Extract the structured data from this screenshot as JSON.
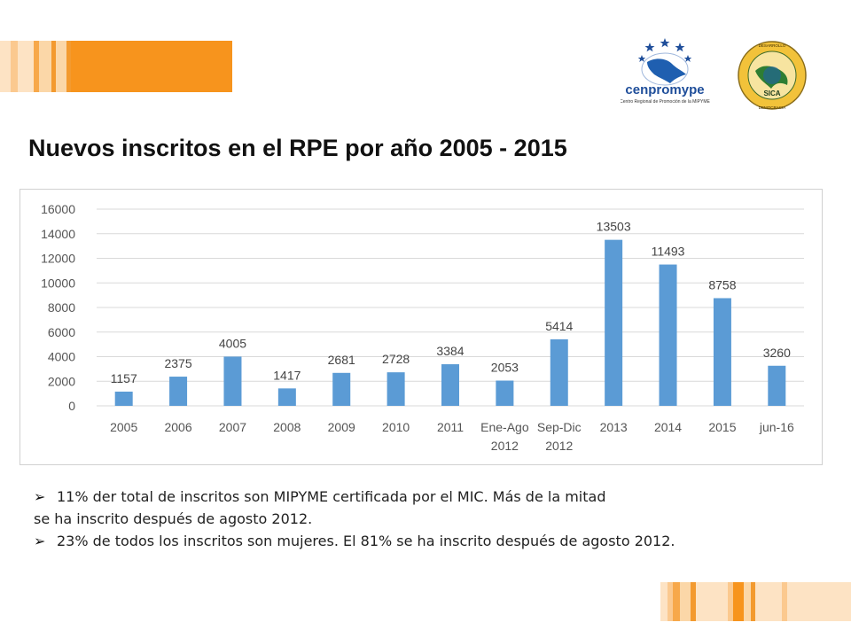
{
  "page": {
    "title": "Nuevos inscritos en el RPE por año 2005 - 2015"
  },
  "logos": {
    "cenpromype": {
      "name": "cenpromype",
      "subtitle": "Centro Regional de Promoción de la MIPYME"
    },
    "sica": {
      "name": "SICA",
      "ring_text": "PAZ · DESARROLLO · LIBERTAD · DEMOCRACIA"
    }
  },
  "colors": {
    "bar": "#5b9bd5",
    "accent_orange": "#f7941d",
    "accent_light": "#fbd7a8",
    "grid": "#d9d9d9"
  },
  "chart_data": {
    "type": "bar",
    "title": "",
    "xlabel": "",
    "ylabel": "",
    "categories": [
      [
        "2005"
      ],
      [
        "2006"
      ],
      [
        "2007"
      ],
      [
        "2008"
      ],
      [
        "2009"
      ],
      [
        "2010"
      ],
      [
        "2011"
      ],
      [
        "Ene-Ago",
        "2012"
      ],
      [
        "Sep-Dic",
        "2012"
      ],
      [
        "2013"
      ],
      [
        "2014"
      ],
      [
        "2015"
      ],
      [
        "jun-16"
      ]
    ],
    "values": [
      1157,
      2375,
      4005,
      1417,
      2681,
      2728,
      3384,
      2053,
      5414,
      13503,
      11493,
      8758,
      3260
    ],
    "ylim": [
      0,
      16000
    ],
    "yticks": [
      0,
      2000,
      4000,
      6000,
      8000,
      10000,
      12000,
      14000,
      16000
    ],
    "grid": true,
    "legend": "none",
    "data_labels": true
  },
  "notes": [
    {
      "bullet": "➢",
      "text": "11% der total de inscritos son MIPYME certificada por el MIC. Más de la mitad"
    },
    {
      "bullet": "",
      "text": "se ha inscrito después de agosto 2012."
    },
    {
      "bullet": "➢",
      "text": "23% de todos los inscritos son mujeres. El 81% se ha inscrito después de agosto 2012."
    }
  ]
}
